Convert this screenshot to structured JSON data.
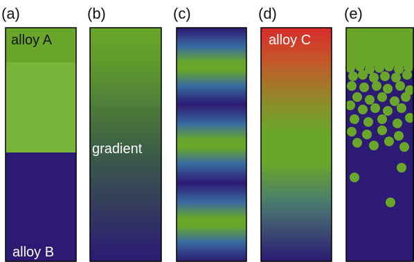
{
  "panels": [
    {
      "id": "a",
      "label": "(a)",
      "texts": [
        "alloy A",
        "alloy B"
      ]
    },
    {
      "id": "b",
      "label": "(b)",
      "texts": [
        "gradient"
      ]
    },
    {
      "id": "c",
      "label": "(c)",
      "texts": []
    },
    {
      "id": "d",
      "label": "(d)",
      "texts": [
        "alloy C"
      ]
    },
    {
      "id": "e",
      "label": "(e)",
      "texts": []
    }
  ],
  "colors": {
    "green": "#6aa62a",
    "light_green": "#79b53a",
    "navy": "#2c1a74",
    "red": "#d92b2b",
    "border": "#000000",
    "text_dark": "#111111",
    "text_light": "#ffffff"
  }
}
